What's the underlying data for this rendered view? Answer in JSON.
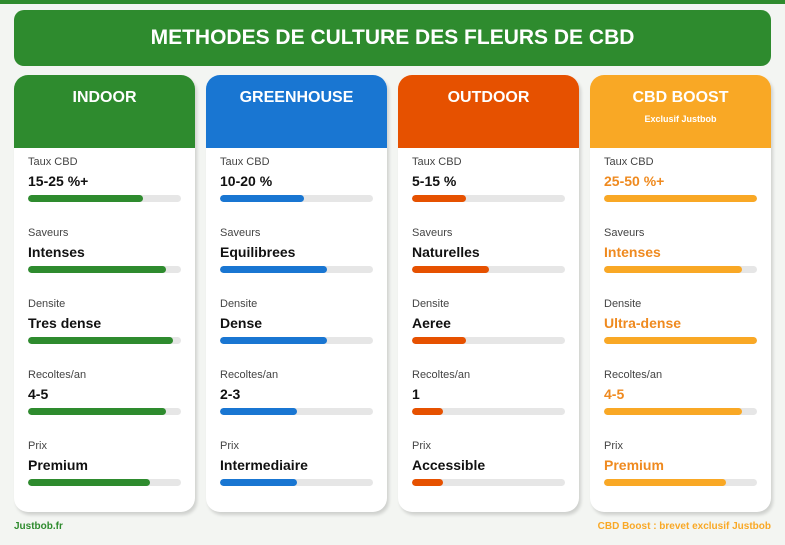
{
  "title": "METHODES DE CULTURE DES FLEURS DE CBD",
  "cards": [
    {
      "name": "INDOOR",
      "subtitle": "",
      "color": "#2e8b2e",
      "value_color": "#111111",
      "metrics": [
        {
          "label": "Taux CBD",
          "value": "15-25 %+",
          "level": 0.75
        },
        {
          "label": "Saveurs",
          "value": "Intenses",
          "level": 0.9
        },
        {
          "label": "Densite",
          "value": "Tres dense",
          "level": 0.95
        },
        {
          "label": "Recoltes/an",
          "value": "4-5",
          "level": 0.9
        },
        {
          "label": "Prix",
          "value": "Premium",
          "level": 0.8
        }
      ]
    },
    {
      "name": "GREENHOUSE",
      "subtitle": "",
      "color": "#1976d2",
      "value_color": "#111111",
      "metrics": [
        {
          "label": "Taux CBD",
          "value": "10-20 %",
          "level": 0.55
        },
        {
          "label": "Saveurs",
          "value": "Equilibrees",
          "level": 0.7
        },
        {
          "label": "Densite",
          "value": "Dense",
          "level": 0.7
        },
        {
          "label": "Recoltes/an",
          "value": "2-3",
          "level": 0.5
        },
        {
          "label": "Prix",
          "value": "Intermediaire",
          "level": 0.5
        }
      ]
    },
    {
      "name": "OUTDOOR",
      "subtitle": "",
      "color": "#e65100",
      "value_color": "#111111",
      "metrics": [
        {
          "label": "Taux CBD",
          "value": "5-15 %",
          "level": 0.35
        },
        {
          "label": "Saveurs",
          "value": "Naturelles",
          "level": 0.5
        },
        {
          "label": "Densite",
          "value": "Aeree",
          "level": 0.35
        },
        {
          "label": "Recoltes/an",
          "value": "1",
          "level": 0.2
        },
        {
          "label": "Prix",
          "value": "Accessible",
          "level": 0.2
        }
      ]
    },
    {
      "name": "CBD BOOST",
      "subtitle": "Exclusif Justbob",
      "color": "#f9a825",
      "value_color": "#ef8a1f",
      "metrics": [
        {
          "label": "Taux CBD",
          "value": "25-50 %+",
          "level": 1.0
        },
        {
          "label": "Saveurs",
          "value": "Intenses",
          "level": 0.9
        },
        {
          "label": "Densite",
          "value": "Ultra-dense",
          "level": 1.0
        },
        {
          "label": "Recoltes/an",
          "value": "4-5",
          "level": 0.9
        },
        {
          "label": "Prix",
          "value": "Premium",
          "level": 0.8
        }
      ]
    }
  ],
  "footer": {
    "left": "Justbob.fr",
    "left_color": "#2e8b2e",
    "right": "CBD Boost : brevet exclusif Justbob",
    "right_color": "#f9a825"
  }
}
